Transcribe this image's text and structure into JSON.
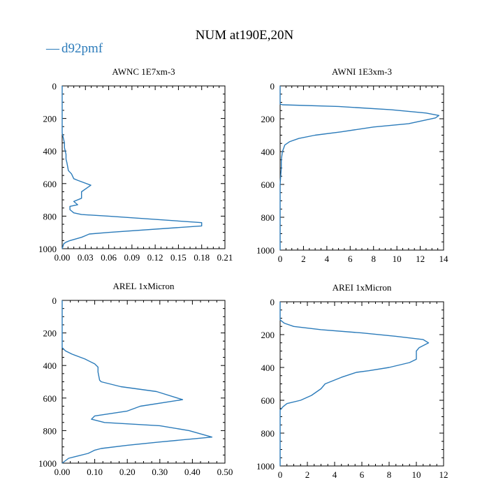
{
  "figure_title": "NUM at190E,20N",
  "legend": {
    "symbol": "—",
    "label": "d92pmf"
  },
  "colors": {
    "series": "#2b7bba",
    "axis": "#000000",
    "background": "#ffffff"
  },
  "chart_data": [
    {
      "type": "line",
      "title": "AWNC  1E7xm-3",
      "xlabel": "",
      "ylabel": "",
      "xlim": [
        0,
        0.21
      ],
      "ylim": [
        1000,
        0
      ],
      "y_inverted": true,
      "xticks": [
        0,
        0.03,
        0.06,
        0.09,
        0.12,
        0.15,
        0.18,
        0.21
      ],
      "xtick_labels": [
        "0.00",
        "0.03",
        "0.06",
        "0.09",
        "0.12",
        "0.15",
        "0.18",
        "0.21"
      ],
      "yticks": [
        0,
        200,
        400,
        600,
        800,
        1000
      ],
      "ytick_labels": [
        "0",
        "200",
        "400",
        "600",
        "800",
        "1000"
      ],
      "series": [
        {
          "name": "d92pmf",
          "x": [
            0,
            0,
            0.001,
            0.002,
            0.003,
            0.003,
            0.004,
            0.005,
            0.005,
            0.006,
            0.008,
            0.012,
            0.015,
            0.02,
            0.037,
            0.025,
            0.025,
            0.015,
            0.02,
            0.01,
            0.01,
            0.015,
            0.025,
            0.06,
            0.18,
            0.18,
            0.06,
            0.035,
            0.03,
            0.025,
            0.01,
            0.005,
            0.002,
            0
          ],
          "y": [
            0,
            290,
            310,
            330,
            350,
            380,
            400,
            420,
            450,
            470,
            520,
            540,
            570,
            580,
            610,
            650,
            690,
            710,
            730,
            740,
            760,
            780,
            790,
            800,
            840,
            860,
            900,
            910,
            920,
            930,
            950,
            960,
            970,
            1000
          ]
        }
      ]
    },
    {
      "type": "line",
      "title": "AWNI  1E3xm-3",
      "xlabel": "",
      "ylabel": "",
      "xlim": [
        0,
        14
      ],
      "ylim": [
        1000,
        0
      ],
      "y_inverted": true,
      "xticks": [
        0,
        2,
        4,
        6,
        8,
        10,
        12,
        14
      ],
      "xtick_labels": [
        "0",
        "2",
        "4",
        "6",
        "8",
        "10",
        "12",
        "14"
      ],
      "yticks": [
        0,
        200,
        400,
        600,
        800,
        1000
      ],
      "ytick_labels": [
        "0",
        "200",
        "400",
        "600",
        "800",
        "1000"
      ],
      "series": [
        {
          "name": "d92pmf",
          "x": [
            0,
            0,
            0.2,
            5,
            9.5,
            12.5,
            13.6,
            13.3,
            11,
            8,
            5.2,
            3,
            1.6,
            0.8,
            0.4,
            0.2,
            0.1,
            0.1,
            0.05,
            0,
            0
          ],
          "y": [
            0,
            110,
            115,
            125,
            145,
            165,
            180,
            195,
            230,
            250,
            280,
            300,
            320,
            340,
            360,
            400,
            450,
            500,
            550,
            600,
            1000
          ]
        }
      ]
    },
    {
      "type": "line",
      "title": "AREL  1xMicron",
      "xlabel": "",
      "ylabel": "",
      "xlim": [
        0,
        0.5
      ],
      "ylim": [
        1000,
        0
      ],
      "y_inverted": true,
      "xticks": [
        0,
        0.1,
        0.2,
        0.3,
        0.4,
        0.5
      ],
      "xtick_labels": [
        "0.00",
        "0.10",
        "0.20",
        "0.30",
        "0.40",
        "0.50"
      ],
      "yticks": [
        0,
        200,
        400,
        600,
        800,
        1000
      ],
      "ytick_labels": [
        "0",
        "200",
        "400",
        "600",
        "800",
        "1000"
      ],
      "series": [
        {
          "name": "d92pmf",
          "x": [
            0,
            0,
            0.01,
            0.03,
            0.07,
            0.1,
            0.11,
            0.11,
            0.115,
            0.12,
            0.18,
            0.29,
            0.37,
            0.24,
            0.2,
            0.1,
            0.09,
            0.13,
            0.3,
            0.39,
            0.46,
            0.3,
            0.2,
            0.12,
            0.1,
            0.09,
            0.08,
            0.04,
            0.02,
            0
          ],
          "y": [
            0,
            290,
            310,
            330,
            360,
            390,
            410,
            440,
            490,
            500,
            530,
            560,
            610,
            650,
            680,
            710,
            730,
            750,
            770,
            800,
            840,
            870,
            890,
            910,
            920,
            930,
            940,
            960,
            970,
            1000
          ]
        }
      ]
    },
    {
      "type": "line",
      "title": "AREI  1xMicron",
      "xlabel": "",
      "ylabel": "",
      "xlim": [
        0,
        12
      ],
      "ylim": [
        1000,
        0
      ],
      "y_inverted": true,
      "xticks": [
        0,
        2,
        4,
        6,
        8,
        10,
        12
      ],
      "xtick_labels": [
        "0",
        "2",
        "4",
        "6",
        "8",
        "10",
        "12"
      ],
      "yticks": [
        0,
        200,
        400,
        600,
        800,
        1000
      ],
      "ytick_labels": [
        "0",
        "200",
        "400",
        "600",
        "800",
        "1000"
      ],
      "series": [
        {
          "name": "d92pmf",
          "x": [
            0,
            0,
            0.3,
            1,
            3,
            6,
            8.5,
            10.5,
            10.9,
            10.2,
            10,
            10,
            9.5,
            8,
            6.5,
            5.6,
            4.5,
            3.3,
            3,
            2.3,
            1.5,
            0.5,
            0.2,
            0,
            0
          ],
          "y": [
            0,
            110,
            130,
            150,
            170,
            190,
            210,
            230,
            250,
            280,
            300,
            350,
            370,
            400,
            420,
            430,
            460,
            500,
            530,
            570,
            600,
            620,
            640,
            660,
            1000
          ]
        }
      ]
    }
  ]
}
